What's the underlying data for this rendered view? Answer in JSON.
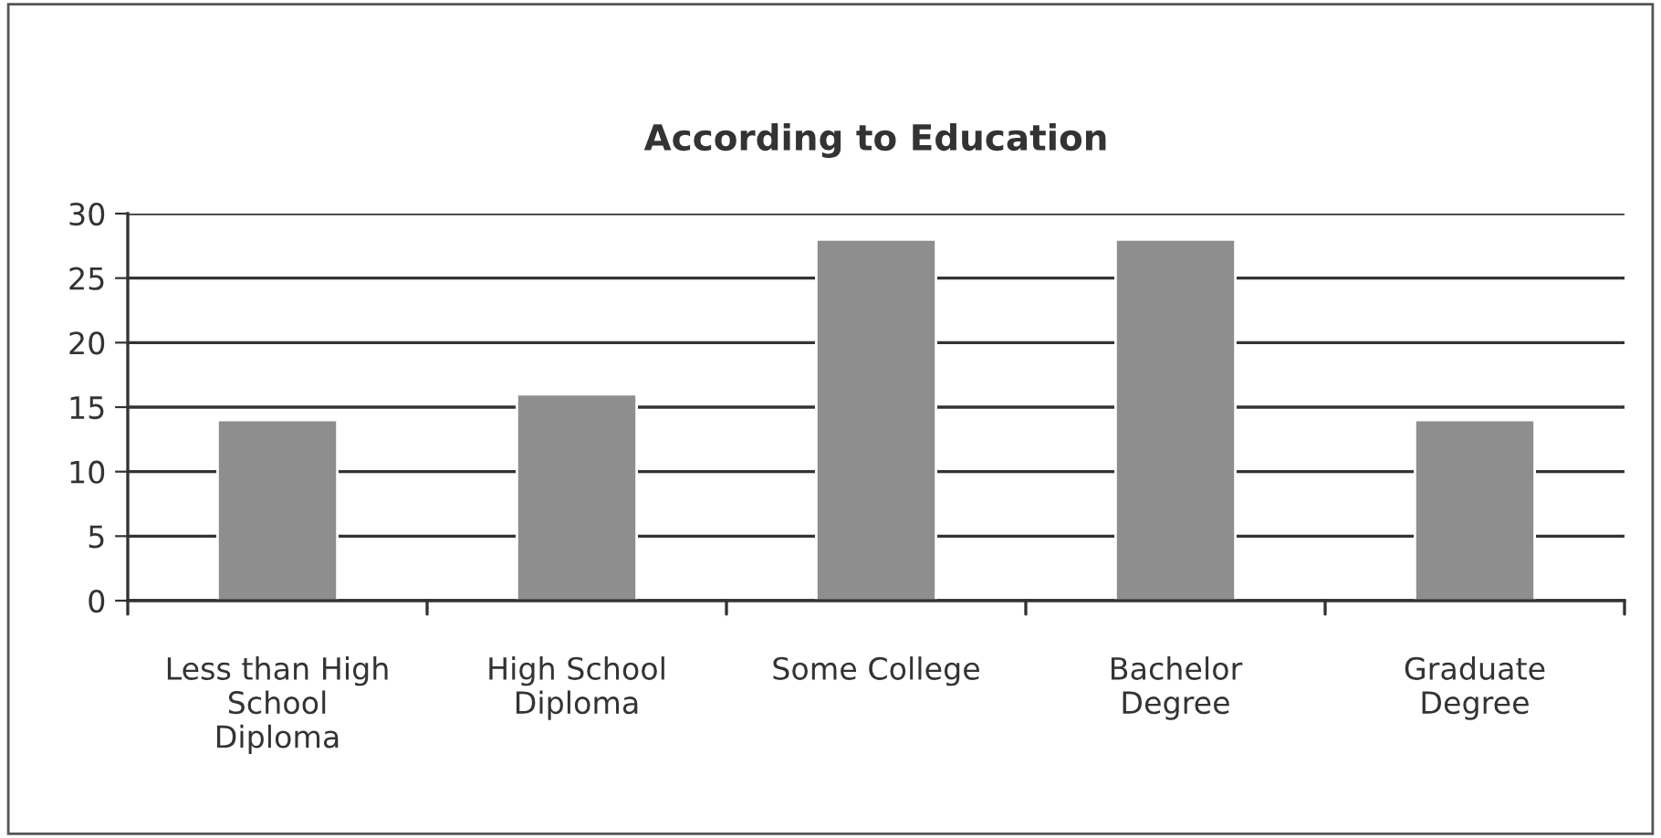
{
  "chart_data": {
    "type": "bar",
    "title": "According to Education",
    "categories": [
      "Less than High\nSchool\nDiploma",
      "High School\nDiploma",
      "Some College",
      "Bachelor\nDegree",
      "Graduate\nDegree"
    ],
    "values": [
      14,
      16,
      28,
      28,
      14
    ],
    "color": "#8e8e8e",
    "ylim": [
      0,
      30
    ],
    "yticks": [
      0,
      5,
      10,
      15,
      20,
      25,
      30
    ],
    "grid": "y",
    "legend": false
  }
}
